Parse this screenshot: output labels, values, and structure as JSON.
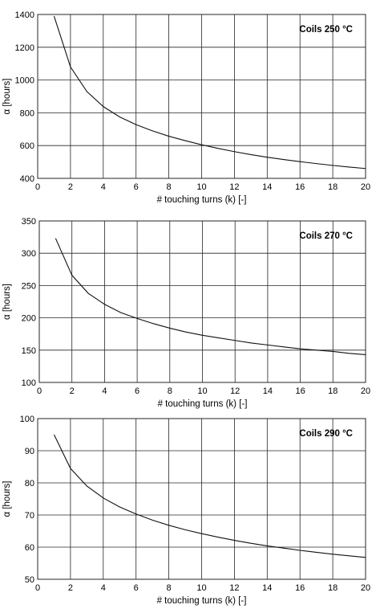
{
  "chart_data": [
    {
      "type": "line",
      "title": "",
      "annotation": "Coils 250 °C",
      "xlabel": "# touching turns (k) [-]",
      "ylabel": "α [hours]",
      "xlim": [
        0,
        20
      ],
      "ylim": [
        400,
        1400
      ],
      "xticks": [
        0,
        2,
        4,
        6,
        8,
        10,
        12,
        14,
        16,
        18,
        20
      ],
      "yticks": [
        400,
        600,
        800,
        1000,
        1200,
        1400
      ],
      "grid": true,
      "series": [
        {
          "x": [
            1,
            2,
            3,
            4,
            5,
            6,
            7,
            8,
            9,
            10,
            11,
            12,
            13,
            14,
            15,
            16,
            17,
            18,
            19,
            20
          ],
          "y": [
            1390,
            1080,
            930,
            838,
            775,
            728,
            690,
            657,
            630,
            605,
            583,
            563,
            545,
            529,
            515,
            502,
            490,
            479,
            469,
            460
          ]
        }
      ]
    },
    {
      "type": "line",
      "title": "",
      "annotation": "Coils 270 °C",
      "xlabel": "# touching turns (k) [-]",
      "ylabel": "α [hours]",
      "xlim": [
        0,
        20
      ],
      "ylim": [
        100,
        350
      ],
      "xticks": [
        0,
        2,
        4,
        6,
        8,
        10,
        12,
        14,
        16,
        18,
        20
      ],
      "yticks": [
        100,
        150,
        200,
        250,
        300,
        350
      ],
      "grid": true,
      "series": [
        {
          "x": [
            1,
            2,
            3,
            4,
            5,
            6,
            7,
            8,
            9,
            10,
            11,
            12,
            13,
            14,
            15,
            16,
            17,
            18,
            19,
            20
          ],
          "y": [
            323,
            266,
            238,
            221,
            208,
            199,
            191,
            184,
            178,
            173,
            169,
            165,
            161,
            158,
            155,
            152,
            150,
            148,
            145,
            143
          ]
        }
      ]
    },
    {
      "type": "line",
      "title": "",
      "annotation": "Coils 290 °C",
      "xlabel": "# touching turns (k) [-]",
      "ylabel": "α [hours]",
      "xlim": [
        0,
        20
      ],
      "ylim": [
        50,
        100
      ],
      "xticks": [
        0,
        2,
        4,
        6,
        8,
        10,
        12,
        14,
        16,
        18,
        20
      ],
      "yticks": [
        50,
        60,
        70,
        80,
        90,
        100
      ],
      "grid": true,
      "series": [
        {
          "x": [
            1,
            2,
            3,
            4,
            5,
            6,
            7,
            8,
            9,
            10,
            11,
            12,
            13,
            14,
            15,
            16,
            17,
            18,
            19,
            20
          ],
          "y": [
            95,
            84.5,
            79,
            75.3,
            72.5,
            70.3,
            68.4,
            66.8,
            65.4,
            64.2,
            63.1,
            62.1,
            61.2,
            60.4,
            59.7,
            59.0,
            58.4,
            57.8,
            57.3,
            56.8
          ]
        }
      ]
    }
  ]
}
